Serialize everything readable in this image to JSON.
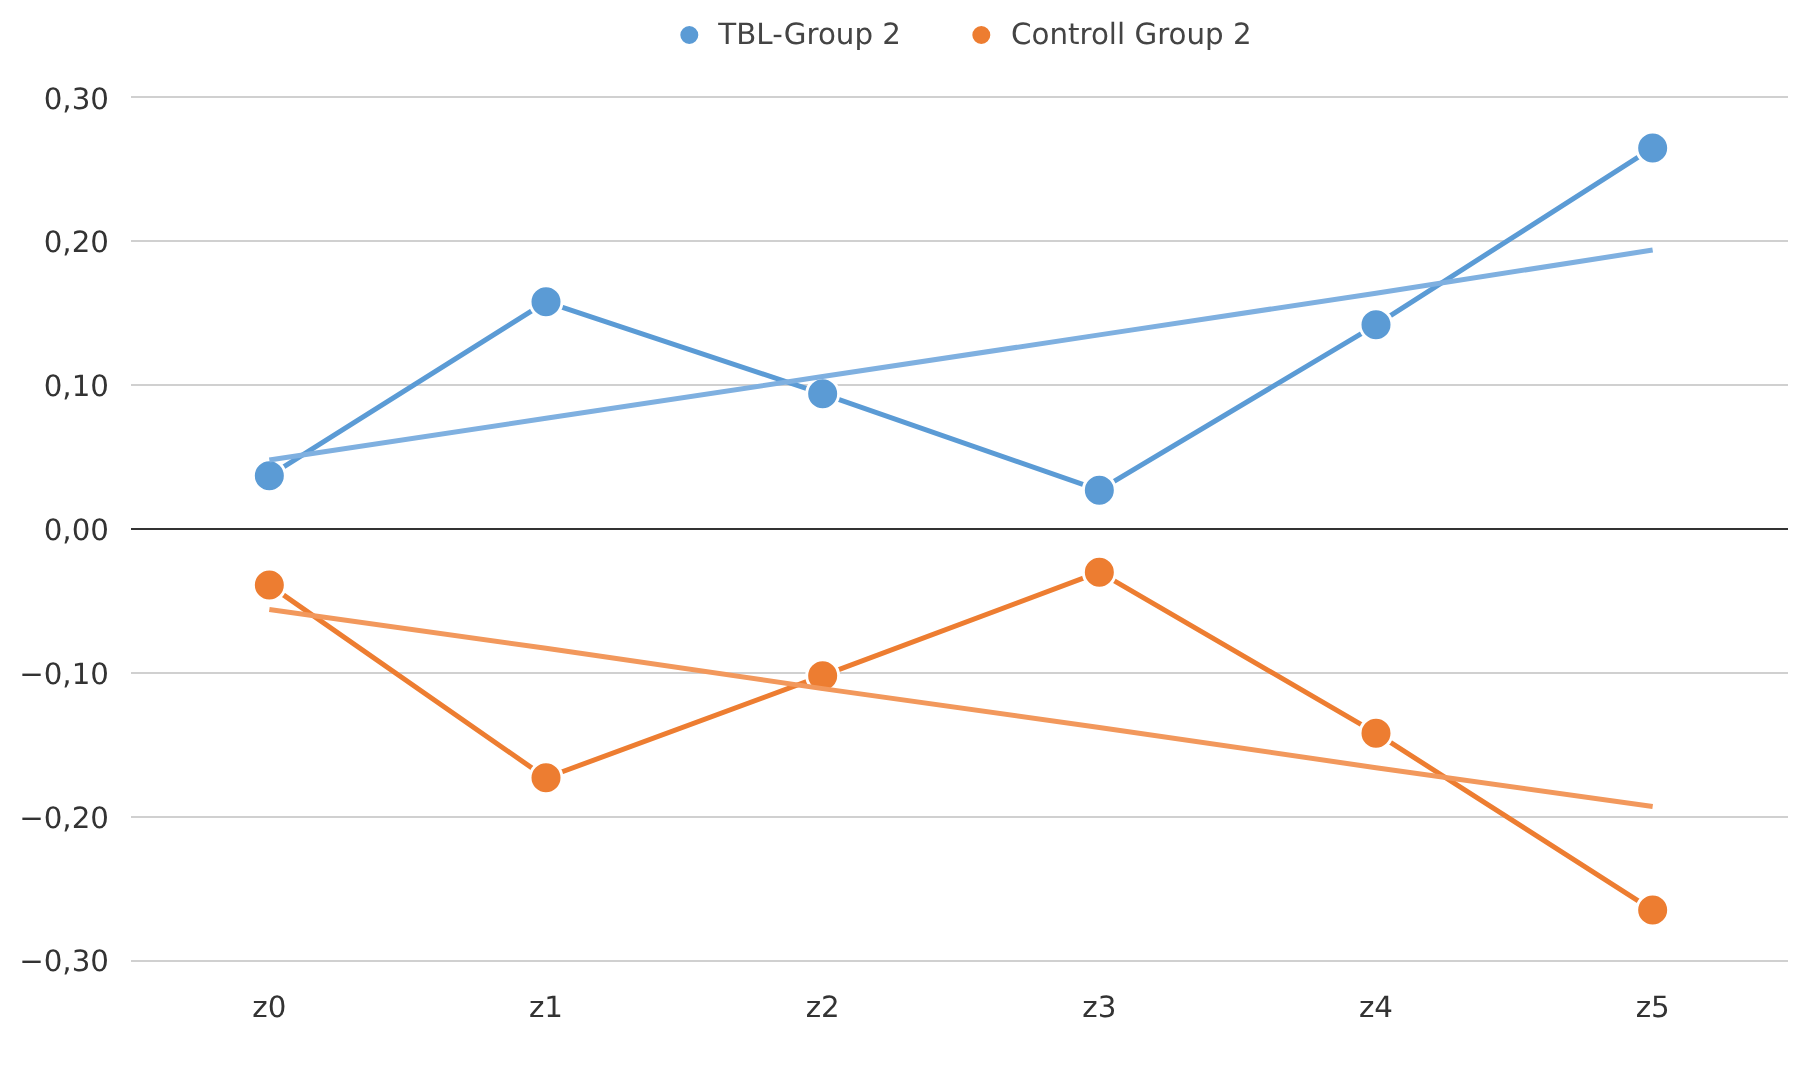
{
  "chart_data": {
    "type": "line",
    "categories": [
      "z0",
      "z1",
      "z2",
      "z3",
      "z4",
      "z5"
    ],
    "series": [
      {
        "name": "TBL-Group 2",
        "color": "#5b9bd5",
        "marker": "circle",
        "values": [
          0.037,
          0.158,
          0.094,
          0.027,
          0.142,
          0.265
        ]
      },
      {
        "name": "Controll Group 2",
        "color": "#ed7d31",
        "marker": "circle",
        "values": [
          -0.039,
          -0.173,
          -0.102,
          -0.03,
          -0.142,
          -0.265
        ]
      },
      {
        "color": "#7fb0e0",
        "marker": "none",
        "values": [
          0.048,
          0.077,
          0.106,
          0.135,
          0.164,
          0.194
        ]
      },
      {
        "color": "#f2985c",
        "marker": "none",
        "values": [
          -0.056,
          -0.083,
          -0.111,
          -0.138,
          -0.166,
          -0.193
        ]
      }
    ],
    "ylim": [
      -0.3,
      0.3
    ],
    "yticks": [
      {
        "value": -0.3,
        "label": "−0,30"
      },
      {
        "value": -0.2,
        "label": "−0,20"
      },
      {
        "value": -0.1,
        "label": "−0,10"
      },
      {
        "value": 0,
        "label": "0,00"
      },
      {
        "value": 0.1,
        "label": "0,10"
      },
      {
        "value": 0.2,
        "label": "0,20"
      },
      {
        "value": 0.3,
        "label": "0,30"
      }
    ],
    "grid": "y",
    "legend": "top",
    "line_style": "solid"
  }
}
